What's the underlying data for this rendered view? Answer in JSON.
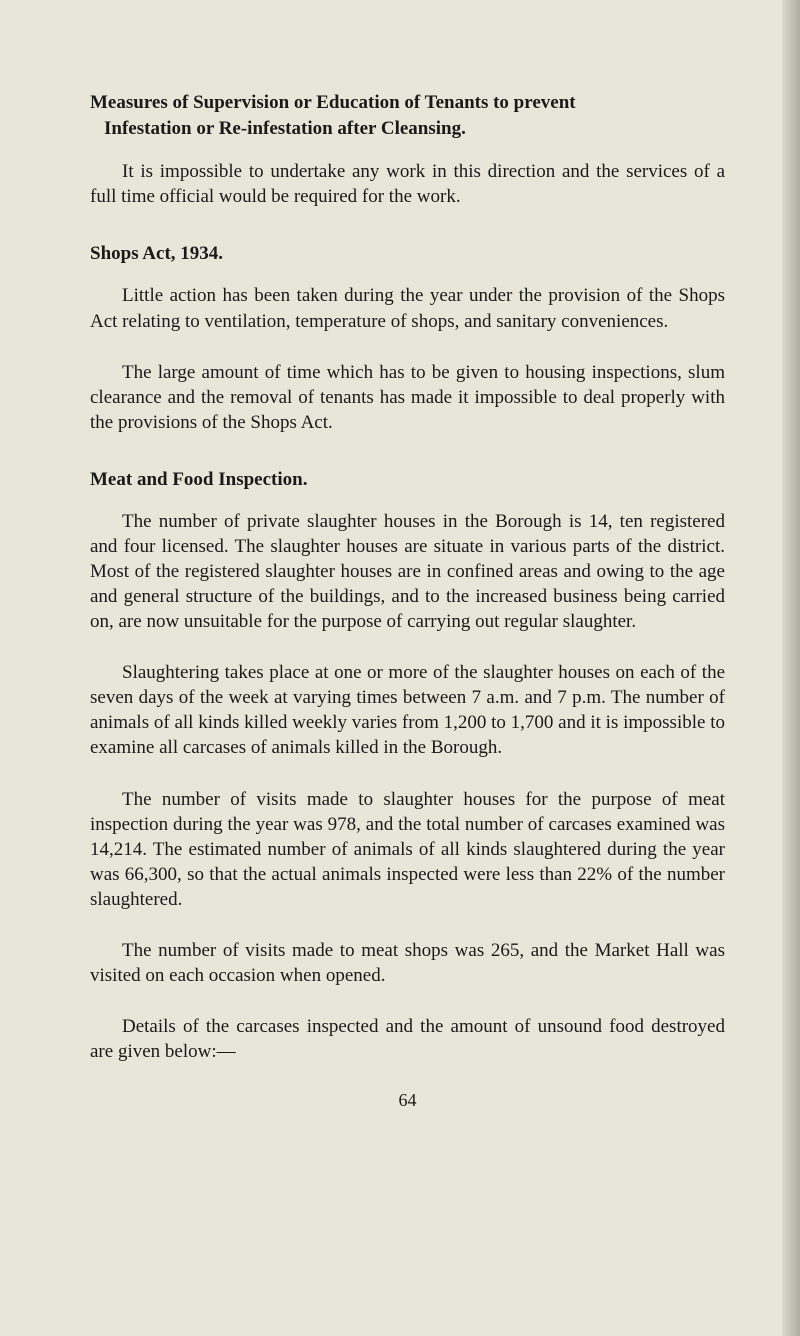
{
  "document": {
    "background_color": "#e8e6d8",
    "text_color": "#1a1a1a",
    "font_family": "Times New Roman",
    "base_fontsize": 19,
    "sections": {
      "measures": {
        "heading_line1": "Measures of Supervision or Education of Tenants to prevent",
        "heading_line2": "Infestation or Re-infestation after Cleansing.",
        "para1": "It is impossible to undertake any work in this direction and the services of a full time official would be required for the work."
      },
      "shops": {
        "title": "Shops Act, 1934.",
        "para1": "Little action has been taken during the year under the provision of the Shops Act relating to ventilation, temperature of shops, and sanitary conveniences.",
        "para2": "The large amount of time which has to be given to housing inspections, slum clearance and the removal of tenants has made it impossible to deal properly with the provisions of the Shops Act."
      },
      "meat": {
        "title": "Meat and Food Inspection.",
        "para1": "The number of private slaughter houses in the Borough is 14, ten registered and four licensed. The slaughter houses are situate in various parts of the district. Most of the registered slaughter houses are in confined areas and owing to the age and general structure of the buildings, and to the increased business being carried on, are now unsuitable for the purpose of carrying out regular slaughter.",
        "para2": "Slaughtering takes place at one or more of the slaughter houses on each of the seven days of the week at varying times between 7 a.m. and 7 p.m. The number of animals of all kinds killed weekly varies from 1,200 to 1,700 and it is impossible to examine all carcases of animals killed in the Borough.",
        "para3": "The number of visits made to slaughter houses for the purpose of meat inspection during the year was 978, and the total number of carcases examined was 14,214. The estimated number of animals of all kinds slaughtered during the year was 66,300, so that the actual animals inspected were less than 22% of the number slaughtered.",
        "para4": "The number of visits made to meat shops was 265, and the Market Hall was visited on each occasion when opened.",
        "para5": "Details of the carcases inspected and the amount of unsound food destroyed are given below:—"
      }
    },
    "page_number": "64"
  }
}
